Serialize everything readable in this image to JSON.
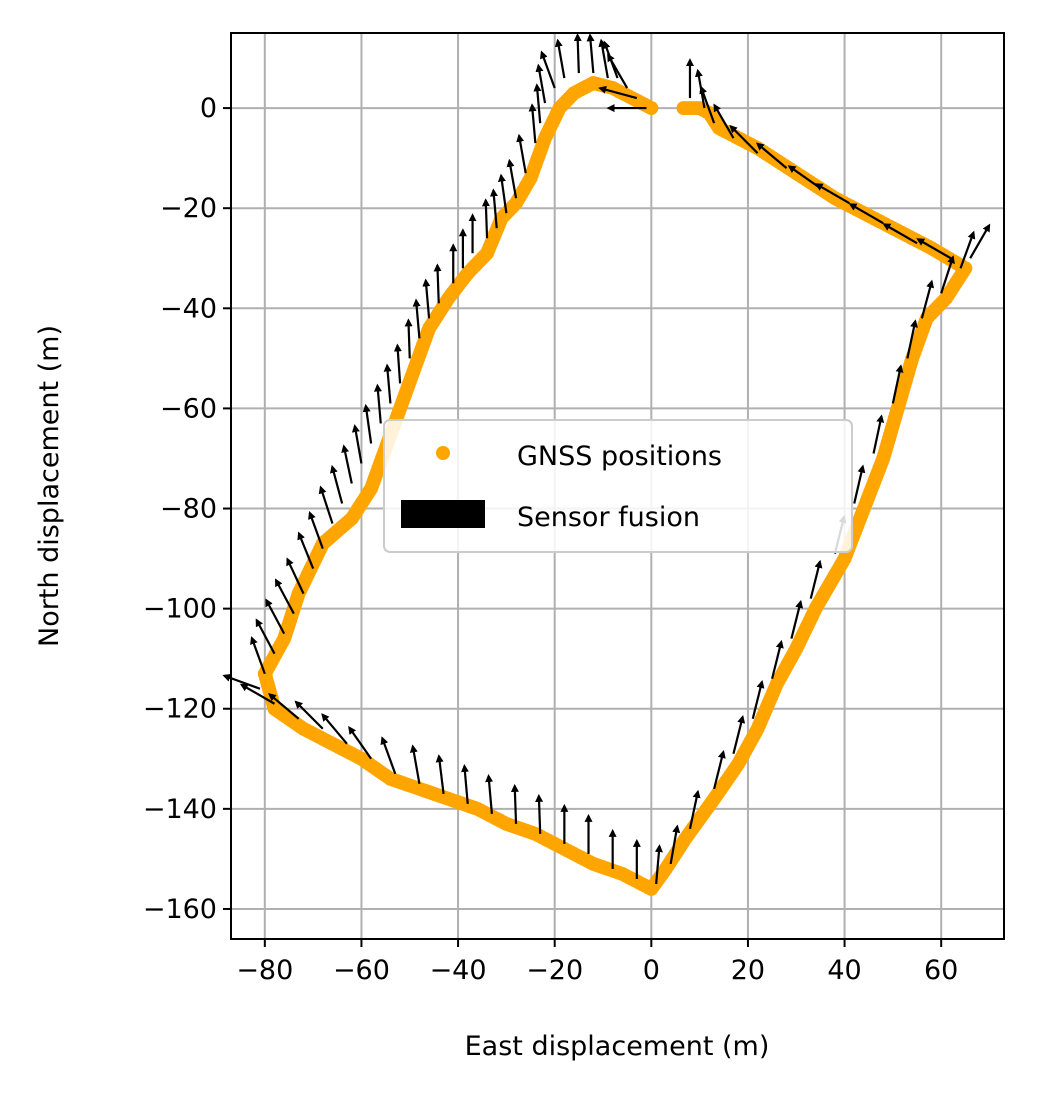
{
  "chart_data": {
    "type": "scatter",
    "title": "",
    "xlabel": "East displacement (m)",
    "ylabel": "North displacement (m)",
    "xlim": [
      -87,
      73
    ],
    "ylim": [
      -166,
      15
    ],
    "xticks": [
      -80,
      -60,
      -40,
      -20,
      0,
      20,
      40,
      60
    ],
    "yticks": [
      0,
      -20,
      -40,
      -60,
      -80,
      -100,
      -120,
      -140,
      -160
    ],
    "xtick_labels": [
      "−80",
      "−60",
      "−40",
      "−20",
      "0",
      "20",
      "40",
      "60"
    ],
    "ytick_labels": [
      "0",
      "−20",
      "−40",
      "−60",
      "−80",
      "−100",
      "−120",
      "−140",
      "−160"
    ],
    "grid": true,
    "legend_position": "center",
    "series": [
      {
        "name": "GNSS positions",
        "marker": "circle",
        "color": "#ffa500",
        "path": [
          [
            0,
            0
          ],
          [
            -4,
            2
          ],
          [
            -8,
            4
          ],
          [
            -12,
            5
          ],
          [
            -16,
            3
          ],
          [
            -19,
            0
          ],
          [
            -22,
            -6
          ],
          [
            -25,
            -14
          ],
          [
            -28,
            -19
          ],
          [
            -31,
            -22
          ],
          [
            -34,
            -29
          ],
          [
            -38,
            -33
          ],
          [
            -42,
            -38
          ],
          [
            -46,
            -44
          ],
          [
            -49,
            -52
          ],
          [
            -52,
            -60
          ],
          [
            -55,
            -68
          ],
          [
            -58,
            -76
          ],
          [
            -62,
            -82
          ],
          [
            -68,
            -87
          ],
          [
            -73,
            -97
          ],
          [
            -76,
            -106
          ],
          [
            -80,
            -113
          ],
          [
            -78,
            -120
          ],
          [
            -72,
            -124
          ],
          [
            -66,
            -127
          ],
          [
            -60,
            -130
          ],
          [
            -54,
            -134
          ],
          [
            -48,
            -136
          ],
          [
            -42,
            -138
          ],
          [
            -36,
            -140
          ],
          [
            -30,
            -143
          ],
          [
            -24,
            -145
          ],
          [
            -18,
            -148
          ],
          [
            -12,
            -151
          ],
          [
            -6,
            -153
          ],
          [
            0,
            -156
          ],
          [
            3,
            -152
          ],
          [
            7,
            -146
          ],
          [
            13,
            -138
          ],
          [
            18,
            -131
          ],
          [
            22,
            -124
          ],
          [
            26,
            -115
          ],
          [
            30,
            -108
          ],
          [
            34,
            -100
          ],
          [
            40,
            -90
          ],
          [
            44,
            -80
          ],
          [
            48,
            -70
          ],
          [
            51,
            -60
          ],
          [
            54,
            -50
          ],
          [
            57,
            -42
          ],
          [
            61,
            -38
          ],
          [
            65,
            -32
          ],
          [
            58,
            -28
          ],
          [
            48,
            -23
          ],
          [
            38,
            -18
          ],
          [
            30,
            -13
          ],
          [
            22,
            -8
          ],
          [
            14,
            -4
          ],
          [
            12,
            -1
          ],
          [
            10,
            0
          ],
          [
            6,
            0
          ]
        ]
      },
      {
        "name": "Sensor fusion",
        "marker": "arrow",
        "color": "#000000",
        "arrows": [
          [
            -1,
            0,
            180
          ],
          [
            -3,
            2,
            165
          ],
          [
            -5,
            4,
            120
          ],
          [
            -7,
            6,
            110
          ],
          [
            -9,
            6,
            100
          ],
          [
            -12,
            7,
            95
          ],
          [
            -15,
            7,
            92
          ],
          [
            -18,
            6,
            100
          ],
          [
            -20,
            4,
            110
          ],
          [
            -22,
            1,
            100
          ],
          [
            -23,
            -3,
            95
          ],
          [
            -24,
            -7,
            95
          ],
          [
            -26,
            -13,
            100
          ],
          [
            -28,
            -18,
            100
          ],
          [
            -30,
            -21,
            98
          ],
          [
            -32,
            -24,
            95
          ],
          [
            -34,
            -26,
            92
          ],
          [
            -37,
            -29,
            90
          ],
          [
            -39,
            -32,
            90
          ],
          [
            -41,
            -35,
            90
          ],
          [
            -44,
            -39,
            92
          ],
          [
            -46,
            -42,
            95
          ],
          [
            -48,
            -46,
            95
          ],
          [
            -50,
            -50,
            92
          ],
          [
            -52,
            -55,
            94
          ],
          [
            -54,
            -59,
            95
          ],
          [
            -56,
            -63,
            95
          ],
          [
            -58,
            -67,
            98
          ],
          [
            -60,
            -71,
            100
          ],
          [
            -62,
            -75,
            102
          ],
          [
            -64,
            -79,
            105
          ],
          [
            -66,
            -83,
            108
          ],
          [
            -68,
            -88,
            110
          ],
          [
            -70,
            -92,
            112
          ],
          [
            -72,
            -97,
            115
          ],
          [
            -74,
            -101,
            118
          ],
          [
            -76,
            -105,
            118
          ],
          [
            -78,
            -109,
            118
          ],
          [
            -80,
            -113,
            110
          ],
          [
            -81,
            -116,
            160
          ],
          [
            -78,
            -119,
            150
          ],
          [
            -73,
            -122,
            140
          ],
          [
            -68,
            -124,
            135
          ],
          [
            -63,
            -127,
            130
          ],
          [
            -58,
            -130,
            125
          ],
          [
            -53,
            -133,
            110
          ],
          [
            -48,
            -135,
            100
          ],
          [
            -43,
            -137,
            97
          ],
          [
            -38,
            -139,
            95
          ],
          [
            -33,
            -141,
            95
          ],
          [
            -28,
            -143,
            92
          ],
          [
            -23,
            -145,
            92
          ],
          [
            -18,
            -147,
            90
          ],
          [
            -13,
            -149,
            90
          ],
          [
            -8,
            -152,
            90
          ],
          [
            -3,
            -154,
            90
          ],
          [
            1,
            -155,
            85
          ],
          [
            4,
            -151,
            80
          ],
          [
            8,
            -144,
            78
          ],
          [
            13,
            -136,
            76
          ],
          [
            17,
            -129,
            76
          ],
          [
            21,
            -122,
            76
          ],
          [
            25,
            -114,
            76
          ],
          [
            29,
            -106,
            76
          ],
          [
            33,
            -98,
            76
          ],
          [
            38,
            -89,
            76
          ],
          [
            42,
            -79,
            77
          ],
          [
            46,
            -69,
            78
          ],
          [
            50,
            -59,
            78
          ],
          [
            53,
            -50,
            78
          ],
          [
            56,
            -42,
            75
          ],
          [
            60,
            -37,
            72
          ],
          [
            64,
            -32,
            70
          ],
          [
            66,
            -30,
            60
          ],
          [
            62,
            -30,
            150
          ],
          [
            55,
            -27,
            150
          ],
          [
            48,
            -23,
            150
          ],
          [
            41,
            -19,
            150
          ],
          [
            35,
            -16,
            145
          ],
          [
            28,
            -12,
            140
          ],
          [
            22,
            -9,
            135
          ],
          [
            17,
            -6,
            120
          ],
          [
            13,
            -3,
            110
          ],
          [
            11,
            0,
            100
          ],
          [
            8,
            2,
            90
          ]
        ]
      }
    ]
  }
}
